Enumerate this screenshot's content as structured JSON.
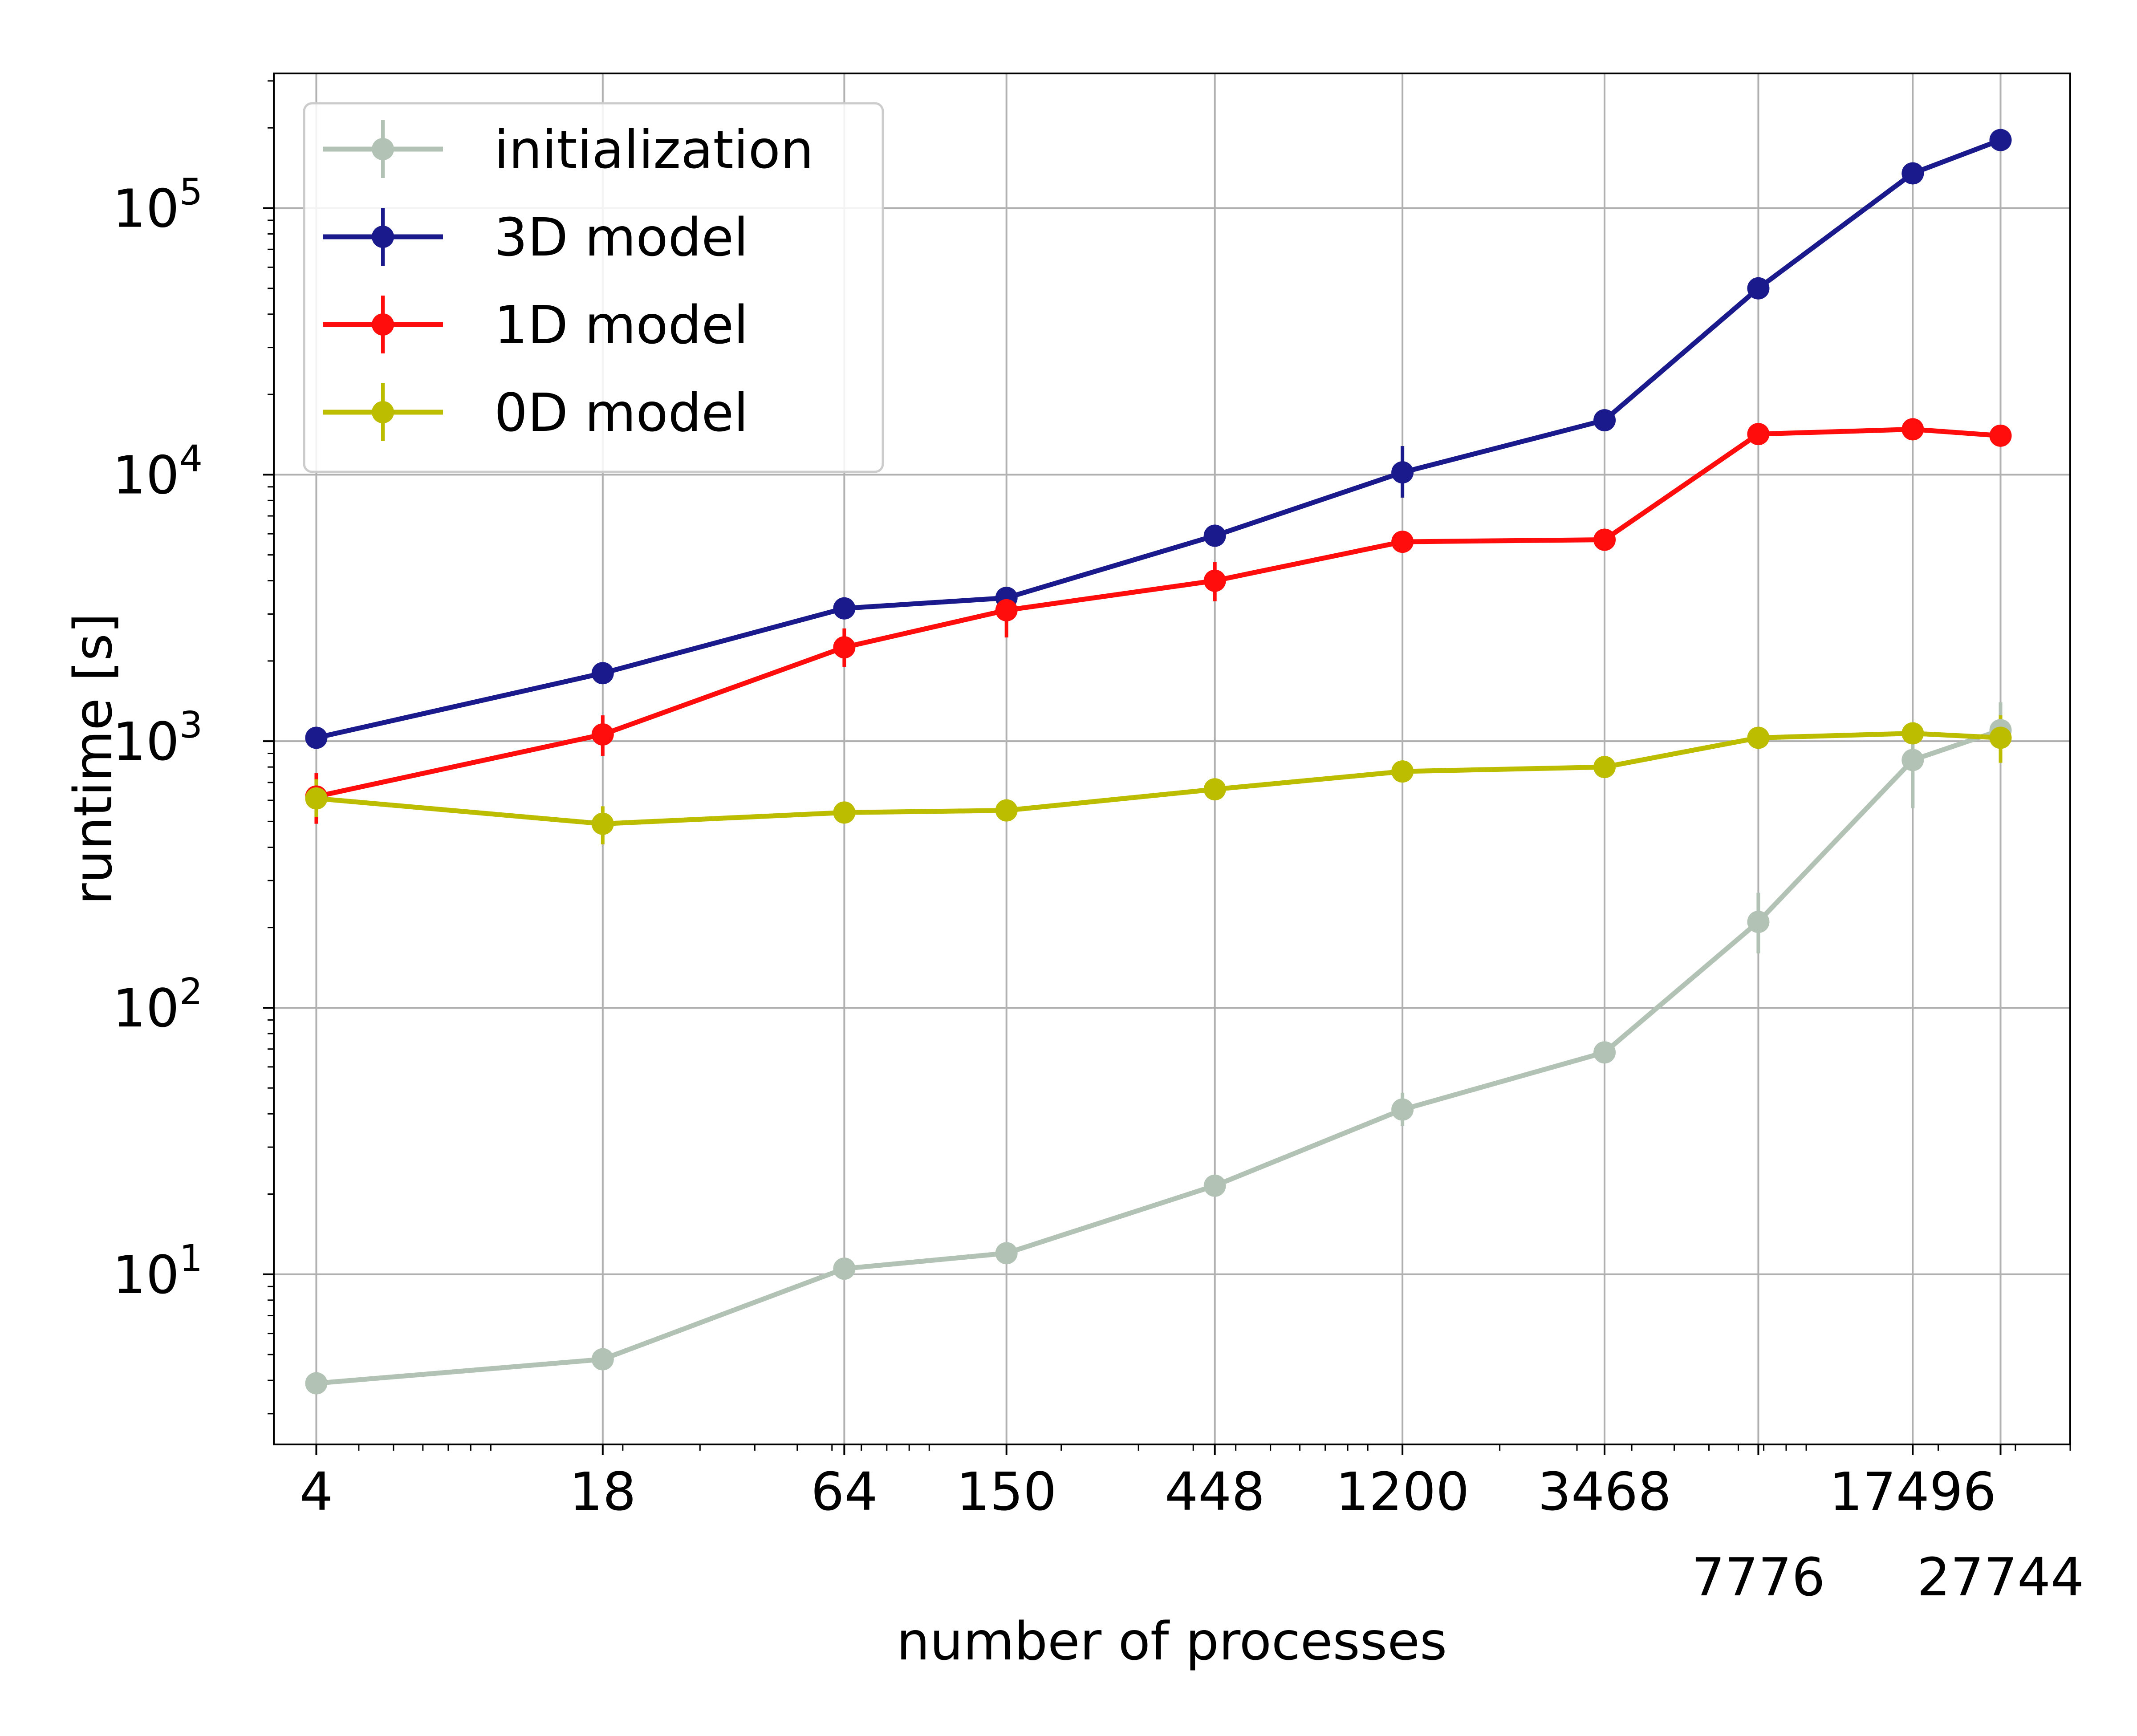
{
  "chart_data": {
    "type": "line",
    "xlabel": "number of processes",
    "ylabel": "runtime [s]",
    "x_scale": "log",
    "y_scale": "log",
    "xlim": [
      3.2,
      40000
    ],
    "ylim": [
      2.3,
      320000
    ],
    "grid": true,
    "legend_position": "top-left",
    "x": [
      4,
      18,
      64,
      150,
      448,
      1200,
      3468,
      7776,
      17496,
      27744
    ],
    "x_tick_labels": [
      "4",
      "18",
      "64",
      "150",
      "448",
      "1200",
      "3468",
      "7776",
      "17496",
      "27744"
    ],
    "y_ticks": [
      {
        "base": "10",
        "exp": "1",
        "value": 10
      },
      {
        "base": "10",
        "exp": "2",
        "value": 100
      },
      {
        "base": "10",
        "exp": "3",
        "value": 1000
      },
      {
        "base": "10",
        "exp": "4",
        "value": 10000
      },
      {
        "base": "10",
        "exp": "5",
        "value": 100000
      }
    ],
    "series": [
      {
        "name": "initialization",
        "color": "#b2c2b4",
        "values": [
          3.9,
          4.8,
          10.5,
          12.0,
          21.5,
          41.5,
          68.0,
          210.0,
          850.0,
          1100.0
        ],
        "errors": [
          [
            3.8,
            4.0
          ],
          [
            4.6,
            5.0
          ],
          [
            10.2,
            10.8
          ],
          [
            11.7,
            12.3
          ],
          [
            20.5,
            22.5
          ],
          [
            36.0,
            48.0
          ],
          [
            65.0,
            71.0
          ],
          [
            160.0,
            270.0
          ],
          [
            560.0,
            1000.0
          ],
          [
            980.0,
            1400.0
          ]
        ]
      },
      {
        "name": "3D model",
        "color": "#1a1a8c",
        "values": [
          1030,
          1800,
          3150,
          3450,
          5900,
          10200,
          16000,
          50000,
          135000,
          180000
        ],
        "errors": [
          [
            1000,
            1060
          ],
          [
            1750,
            1850
          ],
          [
            3050,
            3250
          ],
          [
            3350,
            3550
          ],
          [
            5700,
            6100
          ],
          [
            8200,
            12800
          ],
          [
            15500,
            16500
          ],
          [
            48000,
            52000
          ],
          [
            130000,
            140000
          ],
          [
            175000,
            185000
          ]
        ]
      },
      {
        "name": "1D model",
        "color": "#ff0d0d",
        "values": [
          620,
          1060,
          2250,
          3100,
          4000,
          5600,
          5700,
          14200,
          14800,
          14000
        ],
        "errors": [
          [
            490,
            760
          ],
          [
            880,
            1250
          ],
          [
            1900,
            2650
          ],
          [
            2450,
            3700
          ],
          [
            3350,
            4700
          ],
          [
            5400,
            5800
          ],
          [
            5500,
            5900
          ],
          [
            13800,
            14600
          ],
          [
            14400,
            15200
          ],
          [
            13600,
            14400
          ]
        ]
      },
      {
        "name": "0D model",
        "color": "#bcbc00",
        "values": [
          610,
          490,
          540,
          550,
          660,
          770,
          800,
          1030,
          1070,
          1030
        ],
        "errors": [
          [
            520,
            720
          ],
          [
            410,
            570
          ],
          [
            510,
            570
          ],
          [
            520,
            580
          ],
          [
            630,
            690
          ],
          [
            740,
            800
          ],
          [
            770,
            830
          ],
          [
            990,
            1070
          ],
          [
            1030,
            1110
          ],
          [
            830,
            1250
          ]
        ]
      }
    ]
  }
}
